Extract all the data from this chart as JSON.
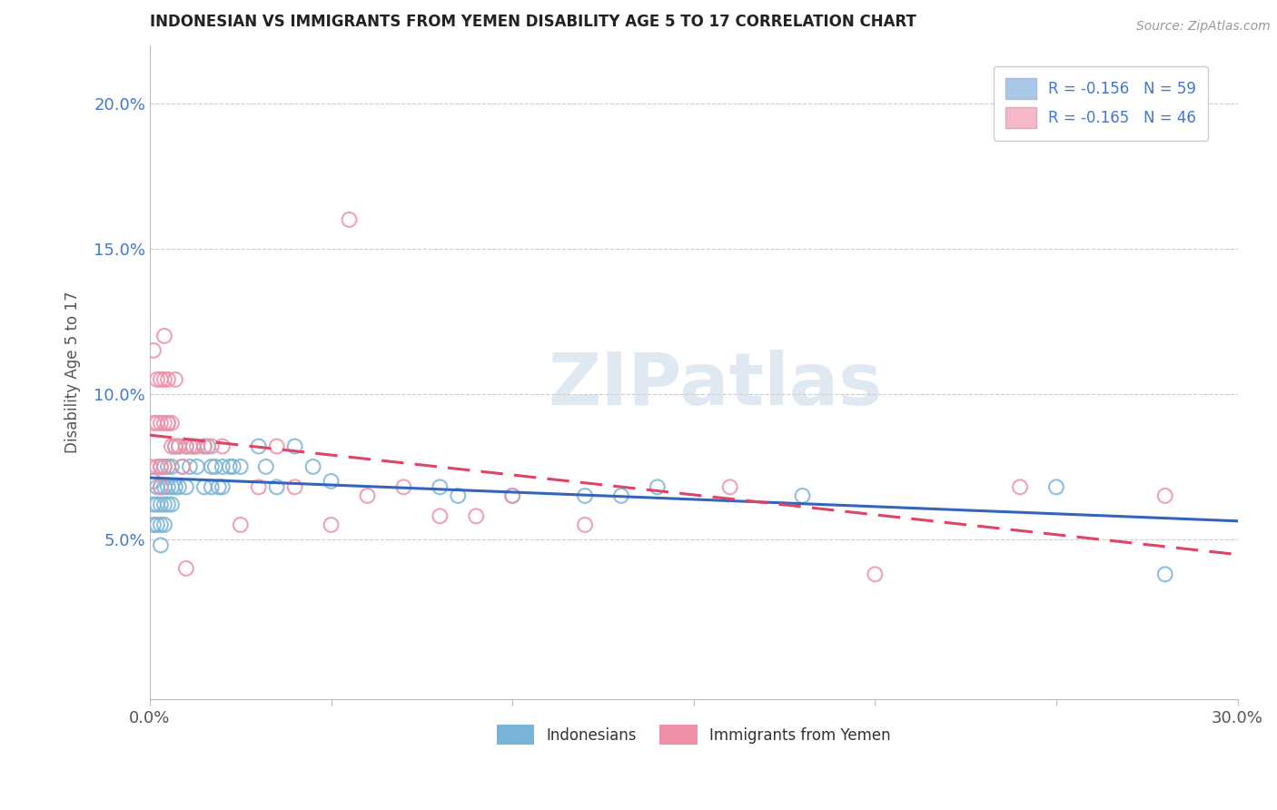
{
  "title": "INDONESIAN VS IMMIGRANTS FROM YEMEN DISABILITY AGE 5 TO 17 CORRELATION CHART",
  "source": "Source: ZipAtlas.com",
  "ylabel": "Disability Age 5 to 17",
  "xlim": [
    0.0,
    0.3
  ],
  "ylim": [
    -0.005,
    0.22
  ],
  "y_ticks": [
    0.05,
    0.1,
    0.15,
    0.2
  ],
  "y_tick_labels": [
    "5.0%",
    "10.0%",
    "15.0%",
    "20.0%"
  ],
  "legend_entries": [
    {
      "label": "R = -0.156   N = 59",
      "color": "#a8c8e8"
    },
    {
      "label": "R = -0.165   N = 46",
      "color": "#f4b8c8"
    }
  ],
  "legend_labels": [
    "Indonesians",
    "Immigrants from Yemen"
  ],
  "watermark": "ZIPatlas",
  "indonesian_color": "#7ab4d8",
  "yemeni_color": "#f090a8",
  "trend_indonesian_color": "#3366bb",
  "trend_yemeni_color": "#dd4466",
  "background_color": "#ffffff",
  "grid_color": "#cccccc",
  "indonesian_points": [
    [
      0.001,
      0.07
    ],
    [
      0.001,
      0.062
    ],
    [
      0.001,
      0.055
    ],
    [
      0.002,
      0.068
    ],
    [
      0.002,
      0.062
    ],
    [
      0.002,
      0.055
    ],
    [
      0.003,
      0.075
    ],
    [
      0.003,
      0.068
    ],
    [
      0.003,
      0.062
    ],
    [
      0.003,
      0.055
    ],
    [
      0.003,
      0.048
    ],
    [
      0.004,
      0.075
    ],
    [
      0.004,
      0.068
    ],
    [
      0.004,
      0.062
    ],
    [
      0.004,
      0.055
    ],
    [
      0.005,
      0.09
    ],
    [
      0.005,
      0.075
    ],
    [
      0.005,
      0.068
    ],
    [
      0.005,
      0.062
    ],
    [
      0.006,
      0.075
    ],
    [
      0.006,
      0.068
    ],
    [
      0.006,
      0.062
    ],
    [
      0.007,
      0.082
    ],
    [
      0.007,
      0.068
    ],
    [
      0.008,
      0.082
    ],
    [
      0.008,
      0.068
    ],
    [
      0.009,
      0.075
    ],
    [
      0.01,
      0.082
    ],
    [
      0.01,
      0.068
    ],
    [
      0.011,
      0.075
    ],
    [
      0.012,
      0.082
    ],
    [
      0.013,
      0.075
    ],
    [
      0.015,
      0.082
    ],
    [
      0.015,
      0.068
    ],
    [
      0.016,
      0.082
    ],
    [
      0.017,
      0.075
    ],
    [
      0.017,
      0.068
    ],
    [
      0.018,
      0.075
    ],
    [
      0.019,
      0.068
    ],
    [
      0.02,
      0.075
    ],
    [
      0.02,
      0.068
    ],
    [
      0.022,
      0.075
    ],
    [
      0.023,
      0.075
    ],
    [
      0.025,
      0.075
    ],
    [
      0.03,
      0.082
    ],
    [
      0.032,
      0.075
    ],
    [
      0.035,
      0.068
    ],
    [
      0.04,
      0.082
    ],
    [
      0.045,
      0.075
    ],
    [
      0.05,
      0.07
    ],
    [
      0.08,
      0.068
    ],
    [
      0.085,
      0.065
    ],
    [
      0.1,
      0.065
    ],
    [
      0.12,
      0.065
    ],
    [
      0.13,
      0.065
    ],
    [
      0.14,
      0.068
    ],
    [
      0.18,
      0.065
    ],
    [
      0.25,
      0.068
    ],
    [
      0.28,
      0.038
    ]
  ],
  "yemeni_points": [
    [
      0.001,
      0.115
    ],
    [
      0.001,
      0.09
    ],
    [
      0.002,
      0.105
    ],
    [
      0.002,
      0.09
    ],
    [
      0.002,
      0.075
    ],
    [
      0.003,
      0.105
    ],
    [
      0.003,
      0.09
    ],
    [
      0.003,
      0.075
    ],
    [
      0.003,
      0.068
    ],
    [
      0.004,
      0.12
    ],
    [
      0.004,
      0.105
    ],
    [
      0.004,
      0.09
    ],
    [
      0.004,
      0.075
    ],
    [
      0.005,
      0.105
    ],
    [
      0.005,
      0.09
    ],
    [
      0.006,
      0.09
    ],
    [
      0.006,
      0.082
    ],
    [
      0.007,
      0.105
    ],
    [
      0.007,
      0.082
    ],
    [
      0.008,
      0.082
    ],
    [
      0.009,
      0.075
    ],
    [
      0.01,
      0.082
    ],
    [
      0.01,
      0.04
    ],
    [
      0.011,
      0.082
    ],
    [
      0.012,
      0.082
    ],
    [
      0.013,
      0.082
    ],
    [
      0.015,
      0.082
    ],
    [
      0.017,
      0.082
    ],
    [
      0.02,
      0.082
    ],
    [
      0.025,
      0.055
    ],
    [
      0.03,
      0.068
    ],
    [
      0.035,
      0.082
    ],
    [
      0.04,
      0.068
    ],
    [
      0.05,
      0.055
    ],
    [
      0.055,
      0.16
    ],
    [
      0.06,
      0.065
    ],
    [
      0.07,
      0.068
    ],
    [
      0.08,
      0.058
    ],
    [
      0.09,
      0.058
    ],
    [
      0.1,
      0.065
    ],
    [
      0.12,
      0.055
    ],
    [
      0.16,
      0.068
    ],
    [
      0.2,
      0.038
    ],
    [
      0.24,
      0.068
    ],
    [
      0.28,
      0.065
    ],
    [
      0.0,
      0.075
    ]
  ]
}
